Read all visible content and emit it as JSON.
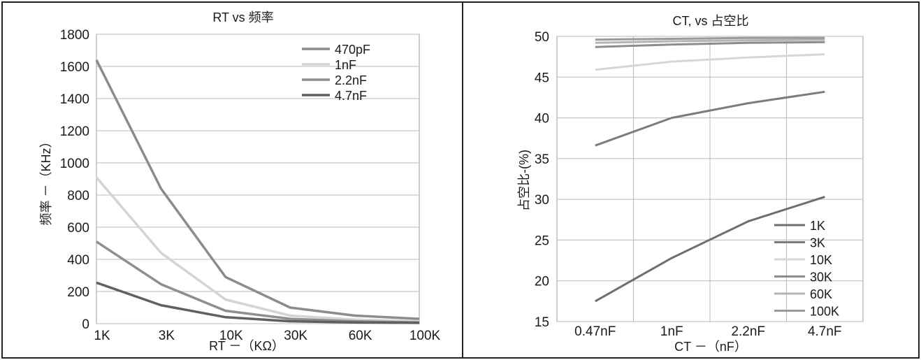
{
  "chart_data": [
    {
      "type": "line",
      "title": "RT vs 频率",
      "xlabel": "RT －（KΩ）",
      "ylabel": "频率 －（KHz）",
      "categories": [
        "1K",
        "3K",
        "10K",
        "30K",
        "60K",
        "100K"
      ],
      "ylim": [
        0,
        1800
      ],
      "yticks": [
        "0",
        "200",
        "400",
        "600",
        "800",
        "1000",
        "1200",
        "1400",
        "1600",
        "1800"
      ],
      "grid": "horizontal",
      "legend_position": "top-right",
      "series": [
        {
          "name": "470pF",
          "color": "#8c8c8c",
          "values": [
            1640,
            840,
            290,
            100,
            50,
            30
          ]
        },
        {
          "name": "1nF",
          "color": "#d4d4d4",
          "values": [
            910,
            440,
            150,
            50,
            25,
            15
          ]
        },
        {
          "name": "2.2nF",
          "color": "#8f8f8f",
          "values": [
            510,
            245,
            80,
            30,
            15,
            8
          ]
        },
        {
          "name": "4.7nF",
          "color": "#606060",
          "values": [
            255,
            115,
            40,
            15,
            8,
            5
          ]
        }
      ]
    },
    {
      "type": "line",
      "title": "CT, vs 占空比",
      "xlabel": "CT －（nF）",
      "ylabel": "占空比-(%)",
      "categories": [
        "0.47nF",
        "1nF",
        "2.2nF",
        "4.7nF"
      ],
      "ylim": [
        15,
        50
      ],
      "yticks": [
        "15",
        "20",
        "25",
        "30",
        "35",
        "40",
        "45",
        "50"
      ],
      "grid": "both",
      "legend_position": "bottom-right",
      "series": [
        {
          "name": "1K",
          "color": "#6e6e6e",
          "values": [
            17.5,
            22.8,
            27.3,
            30.3
          ]
        },
        {
          "name": "3K",
          "color": "#7c7c7c",
          "values": [
            36.6,
            40.0,
            41.8,
            43.2
          ]
        },
        {
          "name": "10K",
          "color": "#d6d6d6",
          "values": [
            45.9,
            46.9,
            47.4,
            47.8
          ]
        },
        {
          "name": "30K",
          "color": "#8c8c8c",
          "values": [
            48.7,
            49.0,
            49.2,
            49.3
          ]
        },
        {
          "name": "60K",
          "color": "#b4b4b4",
          "values": [
            49.2,
            49.4,
            49.5,
            49.6
          ]
        },
        {
          "name": "100K",
          "color": "#9a9a9a",
          "values": [
            49.6,
            49.7,
            49.8,
            49.8
          ]
        }
      ]
    }
  ]
}
